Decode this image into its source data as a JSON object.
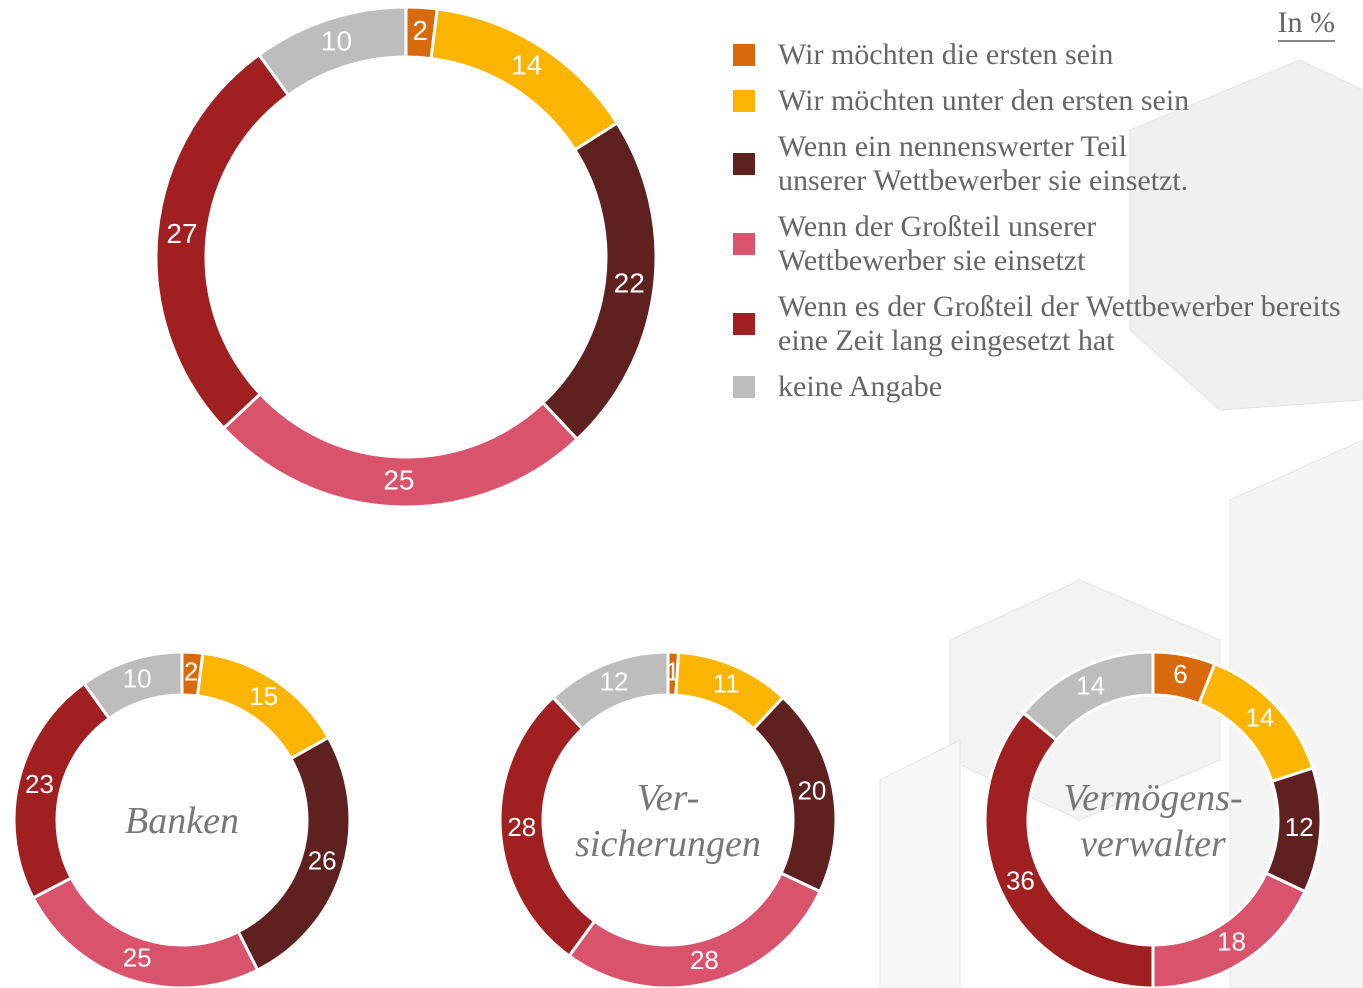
{
  "chart_data": [
    {
      "type": "pie",
      "annotation": "In %",
      "categories": [
        "Wir möchten die ersten sein",
        "Wir möchten unter den ersten sein",
        "Wenn ein nennenswerter Teil unserer Wettbewerber sie einsetzt.",
        "Wenn der Großteil unserer Wettbewerber sie einsetzt",
        "Wenn es der Großteil der Wettbewerber bereits eine Zeit lang eingesetzt hat",
        "keine Angabe"
      ],
      "colors": [
        "#d96a0b",
        "#fbb500",
        "#5f2120",
        "#d9536c",
        "#a01f21",
        "#bdbdbd"
      ],
      "values": [
        2,
        14,
        22,
        25,
        27,
        10
      ]
    },
    {
      "type": "pie",
      "title": [
        "Banken"
      ],
      "values": [
        2,
        15,
        26,
        25,
        23,
        10
      ]
    },
    {
      "type": "pie",
      "title": [
        "Ver-",
        "sicherungen"
      ],
      "values": [
        1,
        11,
        20,
        28,
        28,
        12
      ]
    },
    {
      "type": "pie",
      "title": [
        "Vermögens-",
        "verwalter"
      ],
      "values": [
        6,
        14,
        12,
        18,
        36,
        14
      ]
    }
  ]
}
